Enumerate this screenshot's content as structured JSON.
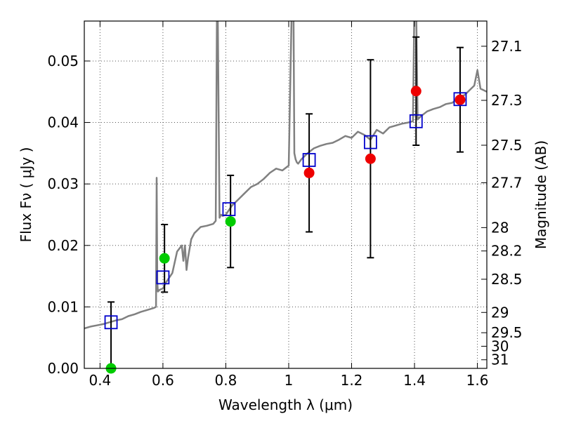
{
  "chart_data": {
    "type": "scatter",
    "xlabel": "Wavelength  λ (μm)",
    "ylabel": "Flux  Fν  ( μJy )",
    "y2label": "Magnitude (AB)",
    "xlim": [
      0.35,
      1.63
    ],
    "ylim": [
      0.0,
      0.0565
    ],
    "grid": true,
    "x_ticks": [
      0.4,
      0.6,
      0.8,
      1.0,
      1.2,
      1.4,
      1.6
    ],
    "x_tick_labels": [
      "0.4",
      "0.6",
      "0.8",
      "1",
      "1.2",
      "1.4",
      "1.6"
    ],
    "y_ticks": [
      0.0,
      0.01,
      0.02,
      0.03,
      0.04,
      0.05
    ],
    "y_tick_labels": [
      "0.00",
      "0.01",
      "0.02",
      "0.03",
      "0.04",
      "0.05"
    ],
    "mag_ticks": [
      {
        "label": "27.1",
        "flux": 0.0524
      },
      {
        "label": "27.3",
        "flux": 0.0436
      },
      {
        "label": "27.5",
        "flux": 0.0363
      },
      {
        "label": "27.7",
        "flux": 0.0302
      },
      {
        "label": "28",
        "flux": 0.0229
      },
      {
        "label": "28.2",
        "flux": 0.0191
      },
      {
        "label": "28.5",
        "flux": 0.0145
      },
      {
        "label": "29",
        "flux": 0.0091
      },
      {
        "label": "29.5",
        "flux": 0.0058
      },
      {
        "label": "30",
        "flux": 0.0036
      },
      {
        "label": "31",
        "flux": 0.0014
      }
    ],
    "colors": {
      "sed": "#808080",
      "model": "#0000cc",
      "detection_green": "#00cc00",
      "detection_red": "#ee0000",
      "errorbar": "#000000",
      "grid": "#555555"
    },
    "series": [
      {
        "type": "line",
        "x": [
          0.35,
          0.37,
          0.39,
          0.41,
          0.43,
          0.45,
          0.47,
          0.49,
          0.51,
          0.53,
          0.55,
          0.57,
          0.578,
          0.58,
          0.582,
          0.584,
          0.59,
          0.6,
          0.61,
          0.63,
          0.645,
          0.66,
          0.665,
          0.67,
          0.675,
          0.68,
          0.69,
          0.7,
          0.72,
          0.74,
          0.76,
          0.768,
          0.772,
          0.774,
          0.78,
          0.785,
          0.79,
          0.8,
          0.82,
          0.84,
          0.86,
          0.88,
          0.9,
          0.92,
          0.94,
          0.96,
          0.98,
          1.0,
          1.01,
          1.015,
          1.018,
          1.022,
          1.026,
          1.03,
          1.04,
          1.05,
          1.06,
          1.08,
          1.1,
          1.12,
          1.14,
          1.16,
          1.18,
          1.2,
          1.22,
          1.24,
          1.26,
          1.28,
          1.3,
          1.32,
          1.34,
          1.36,
          1.38,
          1.395,
          1.4,
          1.405,
          1.41,
          1.42,
          1.44,
          1.46,
          1.48,
          1.5,
          1.52,
          1.54,
          1.56,
          1.58,
          1.59,
          1.6,
          1.61,
          1.63
        ],
        "y": [
          0.0065,
          0.0068,
          0.007,
          0.0072,
          0.0075,
          0.0078,
          0.008,
          0.0085,
          0.0088,
          0.0092,
          0.0095,
          0.0098,
          0.01,
          0.031,
          0.014,
          0.0125,
          0.0128,
          0.013,
          0.014,
          0.0155,
          0.019,
          0.02,
          0.0175,
          0.02,
          0.016,
          0.018,
          0.021,
          0.022,
          0.023,
          0.0232,
          0.0235,
          0.024,
          0.06,
          0.06,
          0.0245,
          0.025,
          0.0248,
          0.025,
          0.0265,
          0.0275,
          0.0285,
          0.0295,
          0.03,
          0.0308,
          0.0318,
          0.0325,
          0.0322,
          0.033,
          0.06,
          0.06,
          0.035,
          0.034,
          0.0335,
          0.0333,
          0.034,
          0.0345,
          0.035,
          0.0358,
          0.0362,
          0.0365,
          0.0367,
          0.0372,
          0.0378,
          0.0375,
          0.0385,
          0.038,
          0.0372,
          0.0388,
          0.0382,
          0.0392,
          0.0395,
          0.0398,
          0.04,
          0.0402,
          0.06,
          0.06,
          0.0405,
          0.041,
          0.0418,
          0.0422,
          0.0425,
          0.043,
          0.0432,
          0.044,
          0.0445,
          0.0455,
          0.046,
          0.0485,
          0.0455,
          0.045
        ]
      },
      {
        "type": "model",
        "x": [
          0.435,
          0.6,
          0.81,
          1.065,
          1.26,
          1.405,
          1.545
        ],
        "y": [
          0.0075,
          0.0148,
          0.0259,
          0.0339,
          0.0368,
          0.0402,
          0.0438
        ]
      },
      {
        "type": "detections",
        "x": [
          0.435,
          0.605,
          0.815
        ],
        "y": [
          0.0,
          0.0179,
          0.0239
        ],
        "yerr": [
          0.0108,
          0.0055,
          0.0075
        ],
        "color": "green"
      },
      {
        "type": "detections",
        "x": [
          1.065,
          1.26,
          1.405,
          1.545
        ],
        "y": [
          0.0318,
          0.0341,
          0.0451,
          0.0437
        ],
        "yerr": [
          0.0096,
          0.0161,
          0.0088,
          0.0085
        ],
        "color": "red"
      }
    ]
  }
}
